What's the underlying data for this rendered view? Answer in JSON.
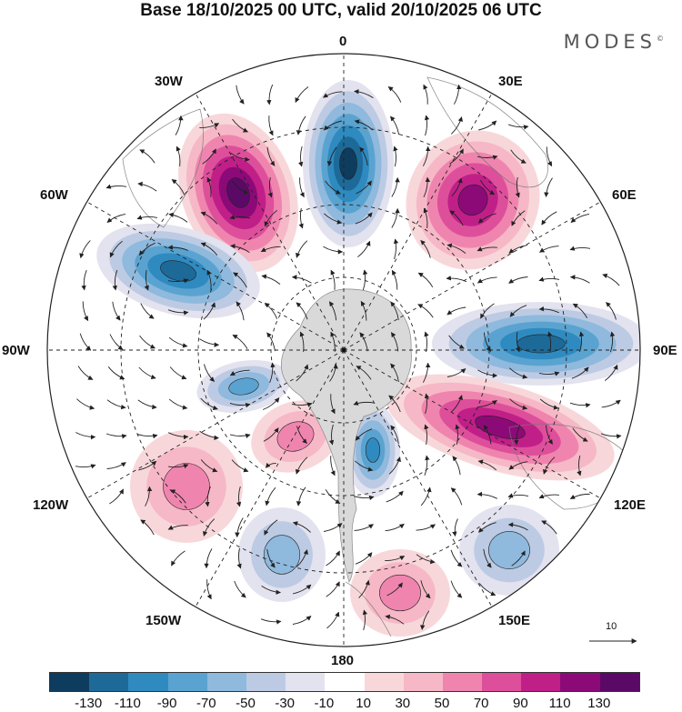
{
  "title": "Base 18/10/2025 00 UTC, valid 20/10/2025 06 UTC",
  "brand": "MODES",
  "brand_mark": "©",
  "longitude_labels": {
    "lon_0": "0",
    "lon_30e": "30E",
    "lon_60e": "60E",
    "lon_90e": "90E",
    "lon_120e": "120E",
    "lon_150e": "150E",
    "lon_180": "180",
    "lon_150w": "150W",
    "lon_120w": "120W",
    "lon_90w": "90W",
    "lon_60w": "60W",
    "lon_30w": "30W"
  },
  "vector_scale": {
    "label": "10"
  },
  "colorbar": {
    "colors": [
      "#0e3c5e",
      "#1d6a98",
      "#2f8ac0",
      "#5aa3d0",
      "#8fb9dd",
      "#bccbe3",
      "#e3e2ef",
      "#ffffff",
      "#f8d7da",
      "#f6b8c6",
      "#ef85ae",
      "#de4f9b",
      "#c01f88",
      "#8c0a78",
      "#5a0a66"
    ],
    "labels": [
      "-130",
      "-110",
      "-90",
      "-70",
      "-50",
      "-30",
      "-10",
      "10",
      "30",
      "50",
      "70",
      "90",
      "110",
      "130"
    ]
  },
  "anomaly_centers": [
    {
      "name": "ridge-30w",
      "sign": "positive",
      "value": 120
    },
    {
      "name": "trough-0",
      "sign": "negative",
      "value": -125
    },
    {
      "name": "ridge-45e",
      "sign": "positive",
      "value": 100
    },
    {
      "name": "trough-65w",
      "sign": "negative",
      "value": -100
    },
    {
      "name": "trough-90e",
      "sign": "negative",
      "value": -110
    },
    {
      "name": "ridge-110e",
      "sign": "positive",
      "value": 110
    },
    {
      "name": "trough-165e",
      "sign": "negative",
      "value": -75
    },
    {
      "name": "trough-105w",
      "sign": "negative",
      "value": -55
    },
    {
      "name": "ridge-125w",
      "sign": "positive",
      "value": 50
    },
    {
      "name": "ridge-150w",
      "sign": "positive",
      "value": 50
    },
    {
      "name": "trough-145w",
      "sign": "negative",
      "value": -35
    },
    {
      "name": "trough-140e",
      "sign": "negative",
      "value": -40
    },
    {
      "name": "ridge-165e",
      "sign": "positive",
      "value": 40
    }
  ]
}
